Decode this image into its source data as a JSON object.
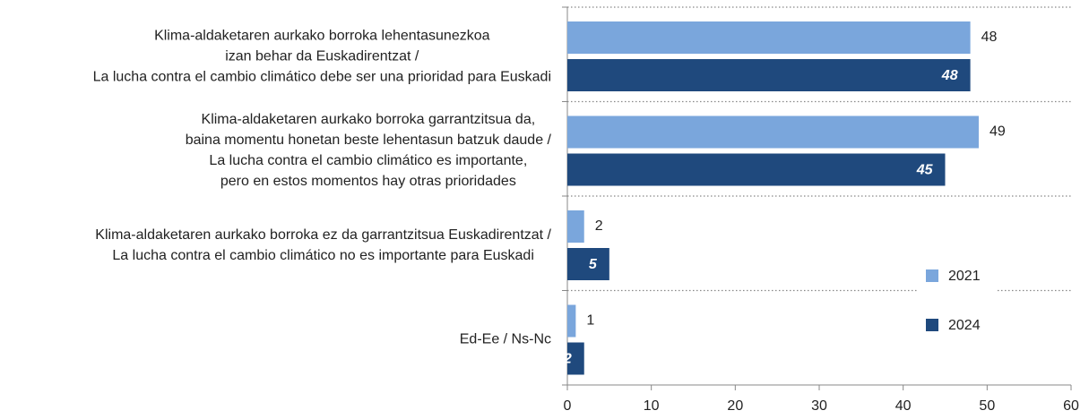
{
  "chart_data": {
    "type": "hbar",
    "categories": [
      "Klima-aldaketaren aurkako borroka lehentasunezkoa\nizan behar da Euskadirentzat /\nLa lucha contra el cambio climático debe ser una prioridad para Euskadi",
      "Klima-aldaketaren aurkako borroka garrantzitsua da,\nbaina momentu honetan beste lehentasun batzuk daude /\nLa lucha contra el cambio climático es importante,\npero en estos momentos hay otras prioridades",
      "Klima-aldaketaren aurkako borroka ez da garrantzitsua Euskadirentzat /\nLa lucha contra el cambio climático no es importante para Euskadi",
      "Ed-Ee / Ns-Nc"
    ],
    "series": [
      {
        "name": "2021",
        "color": "#7aa6dc",
        "values": [
          48,
          49,
          2,
          1
        ]
      },
      {
        "name": "2024",
        "color": "#1f497d",
        "values": [
          48,
          45,
          5,
          2
        ]
      }
    ],
    "xlim": [
      0,
      60
    ],
    "xticks": [
      0,
      10,
      20,
      30,
      40,
      50,
      60
    ],
    "grid": true,
    "legend": "right"
  }
}
